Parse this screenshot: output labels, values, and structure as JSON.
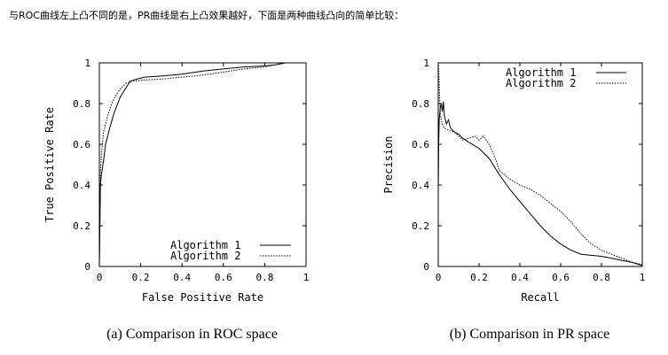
{
  "intro_text": "与ROC曲线左上凸不同的是，PR曲线是右上凸效果越好，下面是两种曲线凸向的简单比较：",
  "chart_data": [
    {
      "type": "line",
      "xlabel": "False Positive Rate",
      "ylabel": "True Positive Rate",
      "caption": "(a) Comparison in ROC space",
      "xlim": [
        0,
        1
      ],
      "ylim": [
        0,
        1
      ],
      "x_ticks": [
        "0",
        "0.2",
        "0.4",
        "0.6",
        "0.8",
        "1"
      ],
      "y_ticks": [
        "0",
        "0.2",
        "0.4",
        "0.6",
        "0.8",
        "1"
      ],
      "legend_position": "bottom-right",
      "series": [
        {
          "name": "Algorithm 1",
          "style": "solid",
          "x": [
            0,
            0.005,
            0.01,
            0.02,
            0.03,
            0.05,
            0.07,
            0.1,
            0.13,
            0.15,
            0.18,
            0.22,
            0.3,
            0.4,
            0.5,
            0.6,
            0.7,
            0.8,
            0.85,
            0.9,
            1.0
          ],
          "y": [
            0,
            0.4,
            0.45,
            0.52,
            0.6,
            0.68,
            0.75,
            0.83,
            0.88,
            0.91,
            0.92,
            0.93,
            0.935,
            0.945,
            0.96,
            0.97,
            0.98,
            0.985,
            0.99,
            1.0,
            1.0
          ]
        },
        {
          "name": "Algorithm 2",
          "style": "dotted",
          "x": [
            0,
            0.005,
            0.01,
            0.02,
            0.04,
            0.06,
            0.08,
            0.1,
            0.13,
            0.16,
            0.2,
            0.3,
            0.4,
            0.5,
            0.6,
            0.7,
            0.8,
            0.85,
            0.9,
            1.0
          ],
          "y": [
            0,
            0.45,
            0.55,
            0.66,
            0.74,
            0.8,
            0.84,
            0.87,
            0.9,
            0.91,
            0.915,
            0.92,
            0.93,
            0.94,
            0.955,
            0.97,
            0.98,
            0.99,
            1.0,
            1.0
          ]
        }
      ]
    },
    {
      "type": "line",
      "xlabel": "Recall",
      "ylabel": "Precision",
      "caption": "(b) Comparison in PR space",
      "xlim": [
        0,
        1
      ],
      "ylim": [
        0,
        1
      ],
      "x_ticks": [
        "0",
        "0.2",
        "0.4",
        "0.6",
        "0.8",
        "1"
      ],
      "y_ticks": [
        "0",
        "0.2",
        "0.4",
        "0.6",
        "0.8",
        "1"
      ],
      "legend_position": "top-right",
      "series": [
        {
          "name": "Algorithm 1",
          "style": "solid",
          "x": [
            0,
            0.002,
            0.005,
            0.01,
            0.015,
            0.02,
            0.025,
            0.03,
            0.04,
            0.05,
            0.06,
            0.08,
            0.1,
            0.12,
            0.15,
            0.2,
            0.25,
            0.3,
            0.35,
            0.4,
            0.45,
            0.5,
            0.55,
            0.6,
            0.65,
            0.7,
            0.75,
            0.8,
            0.85,
            0.9,
            0.95,
            1.0
          ],
          "y": [
            0.35,
            0.6,
            0.72,
            0.78,
            0.8,
            0.76,
            0.81,
            0.74,
            0.7,
            0.72,
            0.68,
            0.66,
            0.65,
            0.63,
            0.61,
            0.58,
            0.53,
            0.45,
            0.38,
            0.32,
            0.26,
            0.2,
            0.15,
            0.11,
            0.08,
            0.06,
            0.055,
            0.05,
            0.04,
            0.03,
            0.02,
            0.005
          ]
        },
        {
          "name": "Algorithm 2",
          "style": "dotted",
          "x": [
            0,
            0.003,
            0.006,
            0.01,
            0.015,
            0.02,
            0.03,
            0.05,
            0.08,
            0.1,
            0.12,
            0.15,
            0.18,
            0.2,
            0.22,
            0.25,
            0.28,
            0.3,
            0.35,
            0.4,
            0.45,
            0.5,
            0.55,
            0.6,
            0.65,
            0.7,
            0.75,
            0.8,
            0.85,
            0.9,
            0.95,
            1.0
          ],
          "y": [
            1.0,
            0.95,
            0.85,
            0.75,
            0.72,
            0.7,
            0.68,
            0.67,
            0.66,
            0.64,
            0.62,
            0.63,
            0.64,
            0.62,
            0.64,
            0.6,
            0.53,
            0.47,
            0.43,
            0.4,
            0.38,
            0.35,
            0.31,
            0.27,
            0.22,
            0.16,
            0.11,
            0.08,
            0.06,
            0.04,
            0.02,
            0.01
          ]
        }
      ]
    }
  ]
}
